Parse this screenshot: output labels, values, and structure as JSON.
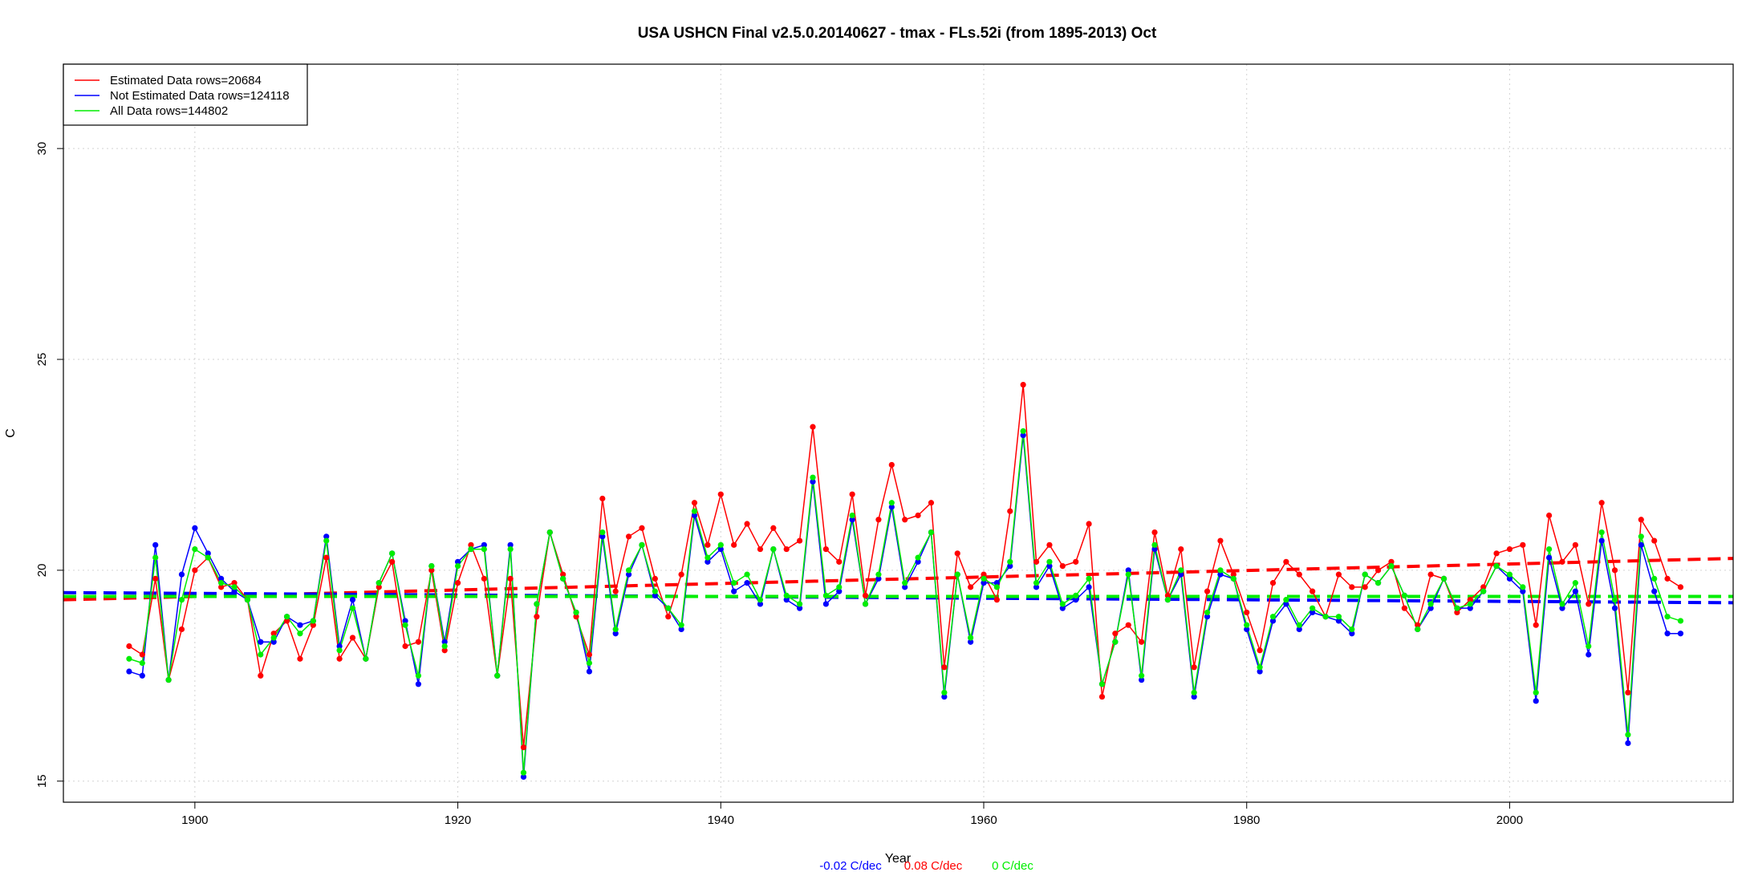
{
  "chart_data": {
    "type": "line",
    "title": "USA USHCN Final v2.5.0.20140627 - tmax - FLs.52i (from 1895-2013) Oct",
    "xlabel": "Year",
    "ylabel": "C",
    "xlim": [
      1890,
      2017
    ],
    "ylim": [
      14.5,
      32
    ],
    "x_ticks": [
      1900,
      1920,
      1940,
      1960,
      1980,
      2000
    ],
    "y_ticks": [
      15,
      20,
      25,
      30
    ],
    "grid": true,
    "legend_position": "top-left",
    "x": [
      1895,
      1896,
      1897,
      1898,
      1899,
      1900,
      1901,
      1902,
      1903,
      1904,
      1905,
      1906,
      1907,
      1908,
      1909,
      1910,
      1911,
      1912,
      1913,
      1914,
      1915,
      1916,
      1917,
      1918,
      1919,
      1920,
      1921,
      1922,
      1923,
      1924,
      1925,
      1926,
      1927,
      1928,
      1929,
      1930,
      1931,
      1932,
      1933,
      1934,
      1935,
      1936,
      1937,
      1938,
      1939,
      1940,
      1941,
      1942,
      1943,
      1944,
      1945,
      1946,
      1947,
      1948,
      1949,
      1950,
      1951,
      1952,
      1953,
      1954,
      1955,
      1956,
      1957,
      1958,
      1959,
      1960,
      1961,
      1962,
      1963,
      1964,
      1965,
      1966,
      1967,
      1968,
      1969,
      1970,
      1971,
      1972,
      1973,
      1974,
      1975,
      1976,
      1977,
      1978,
      1979,
      1980,
      1981,
      1982,
      1983,
      1984,
      1985,
      1986,
      1987,
      1988,
      1989,
      1990,
      1991,
      1992,
      1993,
      1994,
      1995,
      1996,
      1997,
      1998,
      1999,
      2000,
      2001,
      2002,
      2003,
      2004,
      2005,
      2006,
      2007,
      2008,
      2009,
      2010,
      2011,
      2012,
      2013
    ],
    "series": [
      {
        "name": "Estimated Data rows=20684",
        "color": "#ff0000",
        "values": [
          18.2,
          18.0,
          19.8,
          17.4,
          18.6,
          20.0,
          20.3,
          19.6,
          19.7,
          19.3,
          17.5,
          18.5,
          18.8,
          17.9,
          18.7,
          20.3,
          17.9,
          18.4,
          17.9,
          19.6,
          20.2,
          18.2,
          18.3,
          20.0,
          18.1,
          19.7,
          20.6,
          19.8,
          17.5,
          19.8,
          15.8,
          18.9,
          20.9,
          19.9,
          18.9,
          18.0,
          21.7,
          19.5,
          20.8,
          21.0,
          19.8,
          18.9,
          19.9,
          21.6,
          20.6,
          21.8,
          20.6,
          21.1,
          20.5,
          21.0,
          20.5,
          20.7,
          23.4,
          20.5,
          20.2,
          21.8,
          19.4,
          21.2,
          22.5,
          21.2,
          21.3,
          21.6,
          17.7,
          20.4,
          19.6,
          19.9,
          19.3,
          21.4,
          24.4,
          20.2,
          20.6,
          20.1,
          20.2,
          21.1,
          17.0,
          18.5,
          18.7,
          18.3,
          20.9,
          19.4,
          20.5,
          17.7,
          19.5,
          20.7,
          19.9,
          19.0,
          18.1,
          19.7,
          20.2,
          19.9,
          19.5,
          18.9,
          19.9,
          19.6,
          19.6,
          20.0,
          20.2,
          19.1,
          18.7,
          19.9,
          19.8,
          19.0,
          19.3,
          19.6,
          20.4,
          20.5,
          20.6,
          18.7,
          21.3,
          20.2,
          20.6,
          19.2,
          21.6,
          20.0,
          17.1,
          21.2,
          20.7,
          19.8,
          19.6
        ]
      },
      {
        "name": "Not Estimated Data rows=124118",
        "color": "#0000ff",
        "values": [
          17.6,
          17.5,
          20.6,
          17.4,
          19.9,
          21.0,
          20.4,
          19.8,
          19.5,
          19.3,
          18.3,
          18.3,
          18.9,
          18.7,
          18.8,
          20.8,
          18.2,
          19.3,
          17.9,
          19.7,
          20.4,
          18.8,
          17.3,
          20.1,
          18.3,
          20.2,
          20.5,
          20.6,
          17.5,
          20.6,
          15.1,
          19.2,
          20.9,
          19.8,
          19.0,
          17.6,
          20.8,
          18.5,
          19.9,
          20.6,
          19.4,
          19.1,
          18.6,
          21.3,
          20.2,
          20.5,
          19.5,
          19.7,
          19.2,
          20.5,
          19.3,
          19.1,
          22.1,
          19.2,
          19.5,
          21.2,
          19.2,
          19.8,
          21.5,
          19.6,
          20.2,
          20.9,
          17.0,
          19.9,
          18.3,
          19.7,
          19.7,
          20.1,
          23.2,
          19.6,
          20.1,
          19.1,
          19.3,
          19.6,
          17.3,
          18.3,
          20.0,
          17.4,
          20.5,
          19.3,
          19.9,
          17.0,
          18.9,
          19.9,
          19.8,
          18.6,
          17.6,
          18.8,
          19.2,
          18.6,
          19.0,
          18.9,
          18.8,
          18.5,
          19.9,
          19.7,
          20.1,
          19.4,
          18.6,
          19.1,
          19.8,
          19.1,
          19.1,
          19.5,
          20.1,
          19.8,
          19.5,
          16.9,
          20.3,
          19.1,
          19.5,
          18.0,
          20.7,
          19.1,
          15.9,
          20.6,
          19.5,
          18.5,
          18.5
        ]
      },
      {
        "name": "All Data rows=144802",
        "color": "#00ee00",
        "values": [
          17.9,
          17.8,
          20.3,
          17.4,
          19.3,
          20.5,
          20.3,
          19.7,
          19.6,
          19.3,
          18.0,
          18.4,
          18.9,
          18.5,
          18.8,
          20.7,
          18.1,
          19.1,
          17.9,
          19.7,
          20.4,
          18.7,
          17.5,
          20.1,
          18.2,
          20.1,
          20.5,
          20.5,
          17.5,
          20.5,
          15.2,
          19.2,
          20.9,
          19.8,
          19.0,
          17.8,
          20.9,
          18.6,
          20.0,
          20.6,
          19.5,
          19.1,
          18.7,
          21.4,
          20.3,
          20.6,
          19.7,
          19.9,
          19.3,
          20.5,
          19.4,
          19.2,
          22.2,
          19.4,
          19.6,
          21.3,
          19.2,
          19.9,
          21.6,
          19.7,
          20.3,
          20.9,
          17.1,
          19.9,
          18.4,
          19.8,
          19.6,
          20.2,
          23.3,
          19.7,
          20.2,
          19.2,
          19.4,
          19.8,
          17.3,
          18.3,
          19.9,
          17.5,
          20.6,
          19.3,
          20.0,
          17.1,
          19.0,
          20.0,
          19.8,
          18.7,
          17.7,
          18.9,
          19.3,
          18.7,
          19.1,
          18.9,
          18.9,
          18.6,
          19.9,
          19.7,
          20.1,
          19.4,
          18.6,
          19.2,
          19.8,
          19.1,
          19.2,
          19.5,
          20.1,
          19.9,
          19.6,
          17.1,
          20.5,
          19.2,
          19.7,
          18.2,
          20.9,
          19.3,
          16.1,
          20.8,
          19.8,
          18.9,
          18.8
        ]
      }
    ],
    "trend_lines": [
      {
        "series": "Estimated Data rows=20684",
        "color": "#ff0000",
        "x": [
          1890,
          2017
        ],
        "y": [
          19.3,
          20.28
        ]
      },
      {
        "series": "Not Estimated Data rows=124118",
        "color": "#0000ff",
        "x": [
          1890,
          2017
        ],
        "y": [
          19.47,
          19.23
        ]
      },
      {
        "series": "All Data rows=144802",
        "color": "#00ee00",
        "x": [
          1890,
          2017
        ],
        "y": [
          19.38,
          19.38
        ]
      }
    ],
    "trend_labels": [
      {
        "text": "-0.02 C/dec",
        "color": "#0000ff"
      },
      {
        "text": "0.08 C/dec",
        "color": "#ff0000"
      },
      {
        "text": "0 C/dec",
        "color": "#00ee00"
      }
    ]
  }
}
